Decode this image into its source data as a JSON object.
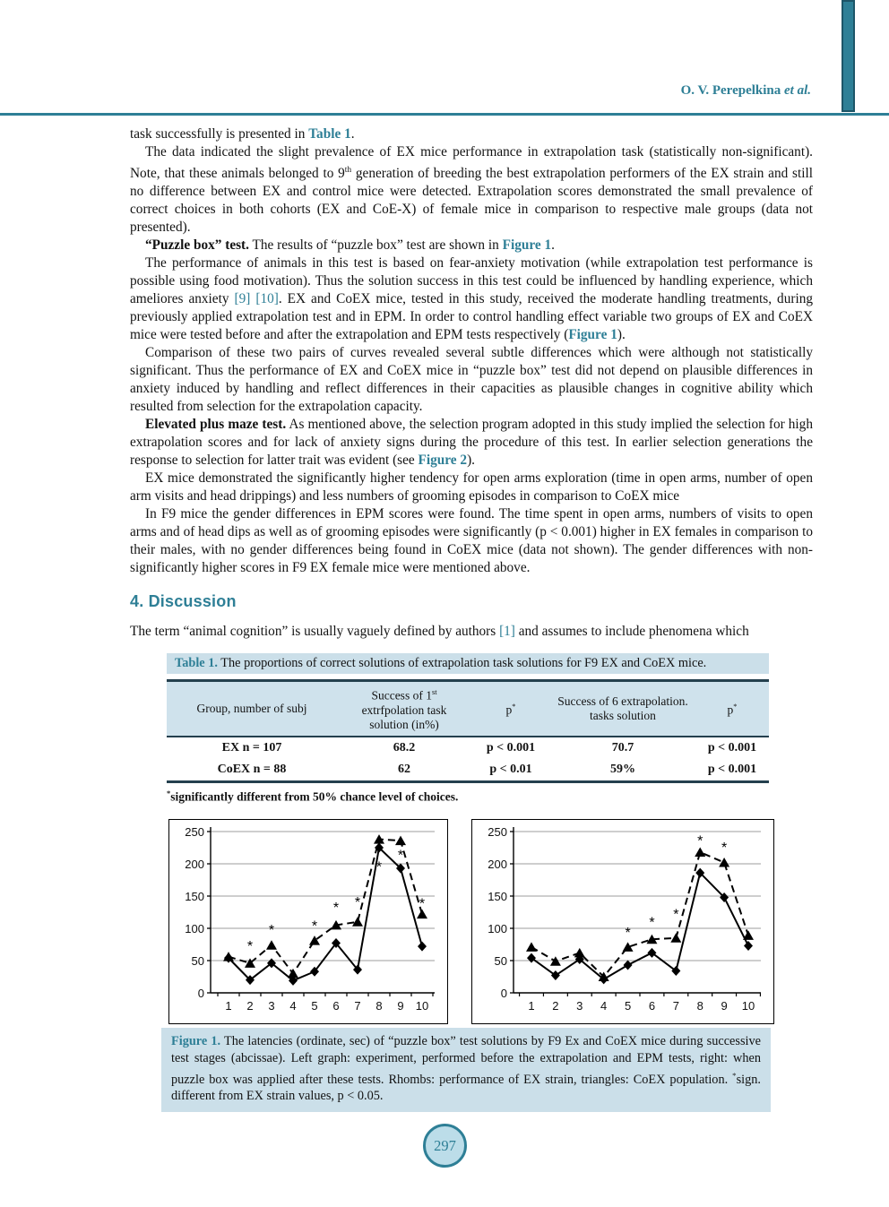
{
  "colors": {
    "accent_teal": "#2e7f96",
    "caption_bg": "#cbdfe9",
    "table_border": "#24404e",
    "circle_fill": "#bcdde9"
  },
  "header": {
    "author": "O. V. Perepelkina ",
    "author_etal": "et al."
  },
  "footer": {
    "page_number": "297"
  },
  "content": {
    "section_heading": "4. Discussion",
    "paragraphs": [
      {
        "indent": false,
        "seg": [
          {
            "t": "task successfully is presented in "
          },
          {
            "t": "Table 1",
            "s": "L"
          },
          {
            "t": "."
          }
        ]
      },
      {
        "indent": true,
        "seg": [
          {
            "t": "The data indicated the slight prevalence of EX mice performance in extrapolation task (statistically non-significant). Note, that these animals belonged to 9"
          },
          {
            "t": "th",
            "s": "sup"
          },
          {
            "t": " generation of breeding the best extrapolation performers of the EX strain and still no difference between EX and control mice were detected. Extrapolation scores demonstrated the small prevalence of correct choices in both cohorts (EX and CoE-X) of female mice in comparison to respective male groups (data not presented)."
          }
        ]
      },
      {
        "indent": true,
        "seg": [
          {
            "t": "“Puzzle box” test.",
            "s": "b"
          },
          {
            "t": " The results of “puzzle box” test are shown in "
          },
          {
            "t": "Figure 1",
            "s": "L"
          },
          {
            "t": "."
          }
        ]
      },
      {
        "indent": true,
        "seg": [
          {
            "t": "The performance of animals in this test is based on fear-anxiety motivation (while extrapolation test performance is possible using food motivation). Thus the solution success in this test could be influenced by handling experience, which ameliores anxiety "
          },
          {
            "t": "[9]",
            "s": "r"
          },
          {
            "t": " "
          },
          {
            "t": "[10]",
            "s": "r"
          },
          {
            "t": ". EX and CoEX mice, tested in this study, received the moderate handling treatments, during previously applied extrapolation test and in EPM. In order to control handling effect variable two groups of EX and CoEX mice were tested before and after the extrapolation and EPM tests respectively ("
          },
          {
            "t": "Figure 1",
            "s": "L"
          },
          {
            "t": ")."
          }
        ]
      },
      {
        "indent": true,
        "seg": [
          {
            "t": "Comparison of these two pairs of curves revealed several subtle differences which were although not statistically significant. Thus the performance of EX and CoEX mice in “puzzle box” test did not depend on plausible differences in anxiety induced by handling and reflect differences in their capacities as plausible changes in cognitive ability which resulted from selection for the extrapolation capacity."
          }
        ]
      },
      {
        "indent": true,
        "seg": [
          {
            "t": "Elevated plus maze test.",
            "s": "b"
          },
          {
            "t": " As mentioned above, the selection program adopted in this study implied the selection for high extrapolation scores and for lack of anxiety signs during the procedure of this test. In earlier selection generations the response to selection for latter trait was evident (see "
          },
          {
            "t": "Figure 2",
            "s": "L"
          },
          {
            "t": ")."
          }
        ]
      },
      {
        "indent": true,
        "seg": [
          {
            "t": "EX mice demonstrated the significantly higher tendency for open arms exploration (time in open arms, number of open arm visits and head drippings) and less numbers of grooming episodes in comparison to CoEX mice"
          }
        ]
      },
      {
        "indent": true,
        "seg": [
          {
            "t": "In F9 mice the gender differences in EPM scores were found. The time spent in open arms, numbers of visits to open arms and of head dips as well as of grooming episodes were significantly (p < 0.001) higher in EX females in comparison to their males, with no gender differences being found in CoEX mice (data not shown). The gender differences with non-significantly higher scores in F9 EX female mice were mentioned above."
          }
        ]
      }
    ],
    "discussion_intro": [
      {
        "t": "The term “animal cognition” is usually vaguely defined by authors "
      },
      {
        "t": "[1]",
        "s": "r"
      },
      {
        "t": " and assumes to include phenomena which"
      }
    ]
  },
  "table1": {
    "caption": [
      {
        "t": "Table 1.",
        "s": "cap"
      },
      {
        "t": " The proportions of correct solutions of extrapolation task solutions for F9 EX and CoEX mice."
      }
    ],
    "headers": [
      [
        {
          "t": "Group, number of subj"
        }
      ],
      [
        {
          "t": "Success of 1"
        },
        {
          "t": "st",
          "s": "sup"
        },
        {
          "t": " extrfpolation task solution (in%)"
        }
      ],
      [
        {
          "t": "p"
        },
        {
          "t": "*",
          "s": "sup"
        }
      ],
      [
        {
          "t": "Success of 6 extrapolation. tasks solution"
        }
      ],
      [
        {
          "t": "p"
        },
        {
          "t": "*",
          "s": "sup"
        }
      ]
    ],
    "rows": [
      [
        "EX n = 107",
        "68.2",
        "p < 0.001",
        "70.7",
        "p < 0.001"
      ],
      [
        "CoEX n = 88",
        "62",
        "p < 0.01",
        "59%",
        "p < 0.001"
      ]
    ],
    "footnote": [
      {
        "t": "*",
        "s": "sup"
      },
      {
        "t": "significantly different from 50% chance level of choices."
      }
    ]
  },
  "figure1": {
    "caption": [
      {
        "t": "Figure 1.",
        "s": "cap"
      },
      {
        "t": " The latencies (ordinate, sec) of “puzzle box” test solutions by F9 Ex and CoEX mice during successive test stages (abcissae). Left graph: experiment, performed before the extrapolation and EPM tests, right: when puzzle box was applied after these tests. Rhombs: performance of EX strain, triangles: CoEX population. "
      },
      {
        "t": "*",
        "s": "sup"
      },
      {
        "t": "sign. different from EX strain values, p < 0.05."
      }
    ]
  },
  "chart_data": [
    {
      "type": "line",
      "title": "",
      "xlabel": "",
      "ylabel": "",
      "x": [
        1,
        2,
        3,
        4,
        5,
        6,
        7,
        8,
        9,
        10
      ],
      "ylim": [
        0,
        250
      ],
      "yticks": [
        0,
        50,
        100,
        150,
        200,
        250
      ],
      "grid": true,
      "legend_position": "none",
      "series": [
        {
          "name": "EX strain (rhombs)",
          "marker": "diamond",
          "line": "solid",
          "values": [
            54,
            20,
            46,
            19,
            33,
            77,
            36,
            225,
            193,
            72
          ]
        },
        {
          "name": "CoEX population (triangles)",
          "marker": "triangle",
          "line": "dashed",
          "values": [
            56,
            46,
            74,
            30,
            81,
            105,
            110,
            238,
            236,
            122
          ]
        }
      ],
      "asterisks": [
        {
          "x": 2,
          "y": 75
        },
        {
          "x": 3,
          "y": 100
        },
        {
          "x": 5,
          "y": 106
        },
        {
          "x": 6,
          "y": 135
        },
        {
          "x": 7,
          "y": 143
        },
        {
          "x": 8,
          "y": 198
        },
        {
          "x": 9,
          "y": 216
        },
        {
          "x": 10,
          "y": 141
        }
      ]
    },
    {
      "type": "line",
      "title": "",
      "xlabel": "",
      "ylabel": "",
      "x": [
        1,
        2,
        3,
        4,
        5,
        6,
        7,
        8,
        9,
        10
      ],
      "ylim": [
        0,
        250
      ],
      "yticks": [
        0,
        50,
        100,
        150,
        200,
        250
      ],
      "grid": true,
      "legend_position": "none",
      "series": [
        {
          "name": "EX strain (rhombs)",
          "marker": "diamond",
          "line": "solid",
          "values": [
            54,
            27,
            52,
            21,
            43,
            62,
            34,
            186,
            148,
            73
          ]
        },
        {
          "name": "CoEX population (triangles)",
          "marker": "triangle",
          "line": "dashed",
          "values": [
            71,
            49,
            62,
            25,
            71,
            83,
            85,
            218,
            202,
            89
          ]
        }
      ],
      "asterisks": [
        {
          "x": 5,
          "y": 96
        },
        {
          "x": 6,
          "y": 112
        },
        {
          "x": 7,
          "y": 124
        },
        {
          "x": 8,
          "y": 238
        },
        {
          "x": 9,
          "y": 228
        }
      ]
    }
  ]
}
